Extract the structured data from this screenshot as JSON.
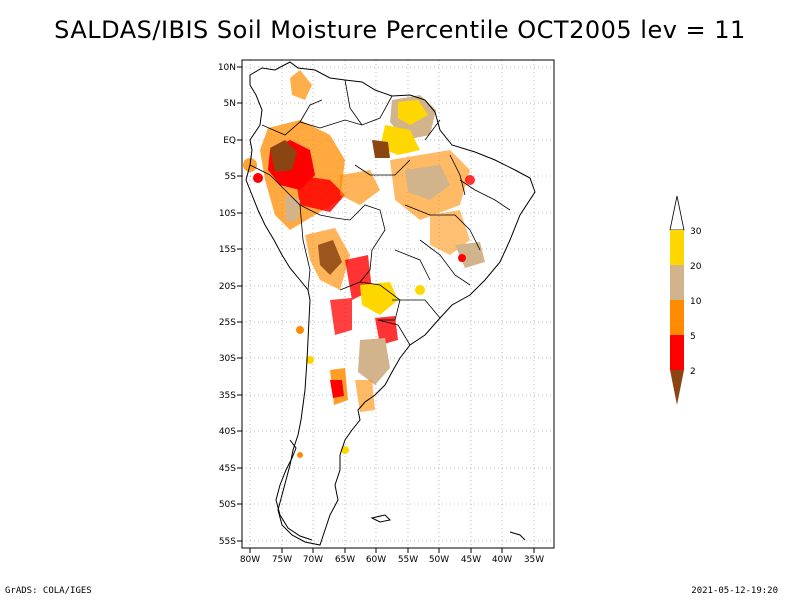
{
  "title": "SALDAS/IBIS Soil Moisture Percentile OCT2005 lev = 11",
  "map": {
    "lat_labels": [
      "10N",
      "5N",
      "EQ",
      "5S",
      "10S",
      "15S",
      "20S",
      "25S",
      "30S",
      "35S",
      "40S",
      "45S",
      "50S",
      "55S"
    ],
    "lon_labels": [
      "80W",
      "75W",
      "70W",
      "65W",
      "60W",
      "55W",
      "50W",
      "45W",
      "40W",
      "35W"
    ]
  },
  "colorbar": {
    "labels": [
      "30",
      "20",
      "10",
      "5",
      "2"
    ],
    "colors": {
      "above_30": "#ffffff",
      "c20_30": "#ffd700",
      "c10_20": "#d2b48c",
      "c5_10": "#ff8c00",
      "c2_5": "#ff0000",
      "below_2": "#8b4513"
    }
  },
  "footer": {
    "left": "GrADS: COLA/IGES",
    "right": "2021-05-12-19:20"
  }
}
